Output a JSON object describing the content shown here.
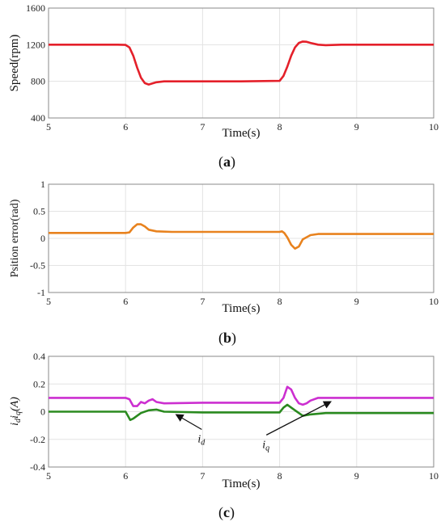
{
  "chart_data": [
    {
      "type": "line",
      "xlabel": "Time(s)",
      "ylabel": "Speed(rpm)",
      "panel_label": "a",
      "xlim": [
        5,
        10
      ],
      "ylim": [
        400,
        1600
      ],
      "xticks": [
        "5",
        "6",
        "7",
        "8",
        "9",
        "10"
      ],
      "yticks": [
        "400",
        "800",
        "1200",
        "1600"
      ],
      "grid": true,
      "colors": {
        "speed": "#e4202a"
      },
      "series": [
        {
          "x": [
            5,
            5.9,
            6.0,
            6.05,
            6.1,
            6.15,
            6.2,
            6.25,
            6.3,
            6.4,
            6.5,
            6.7,
            7.0,
            7.5,
            8.0,
            8.05,
            8.1,
            8.15,
            8.2,
            8.25,
            8.3,
            8.35,
            8.4,
            8.5,
            8.6,
            8.8,
            9.0,
            9.5,
            10
          ],
          "y": [
            1200,
            1200,
            1198,
            1170,
            1080,
            950,
            840,
            780,
            765,
            790,
            800,
            800,
            800,
            800,
            805,
            860,
            960,
            1080,
            1170,
            1220,
            1235,
            1232,
            1220,
            1200,
            1195,
            1200,
            1200,
            1200,
            1200
          ]
        }
      ]
    },
    {
      "type": "line",
      "xlabel": "Time(s)",
      "ylabel": "Psition error(rad)",
      "panel_label": "b",
      "xlim": [
        5,
        10
      ],
      "ylim": [
        -1,
        1
      ],
      "xticks": [
        "5",
        "6",
        "7",
        "8",
        "9",
        "10"
      ],
      "yticks": [
        "-1",
        "-0.5",
        "0",
        "0.5",
        "1"
      ],
      "grid": true,
      "colors": {
        "error": "#e8821e"
      },
      "series": [
        {
          "x": [
            5,
            5.5,
            6.0,
            6.05,
            6.1,
            6.15,
            6.2,
            6.25,
            6.3,
            6.4,
            6.6,
            7.0,
            7.5,
            8.0,
            8.03,
            8.06,
            8.1,
            8.15,
            8.2,
            8.25,
            8.3,
            8.4,
            8.5,
            9.0,
            10
          ],
          "y": [
            0.1,
            0.1,
            0.1,
            0.11,
            0.2,
            0.26,
            0.26,
            0.22,
            0.16,
            0.13,
            0.12,
            0.12,
            0.12,
            0.12,
            0.13,
            0.1,
            0.02,
            -0.12,
            -0.19,
            -0.15,
            -0.02,
            0.06,
            0.08,
            0.08,
            0.08
          ]
        }
      ]
    },
    {
      "type": "line",
      "xlabel": "Time(s)",
      "ylabel": "i_d i_q (A)",
      "panel_label": "c",
      "xlim": [
        5,
        10
      ],
      "ylim": [
        -0.4,
        0.4
      ],
      "xticks": [
        "5",
        "6",
        "7",
        "8",
        "9",
        "10"
      ],
      "yticks": [
        "-0.4",
        "-0.2",
        "0",
        "0.2",
        "0.4"
      ],
      "grid": true,
      "colors": {
        "iq": "#cc2fd0",
        "id": "#2a8a1f"
      },
      "annotations": [
        {
          "text": "i_d",
          "target_x": 6.6,
          "target_y": 0.0
        },
        {
          "text": "i_q",
          "target_x": 8.7,
          "target_y": 0.1
        }
      ],
      "series": [
        {
          "name": "i_q",
          "x": [
            5,
            6.0,
            6.05,
            6.1,
            6.15,
            6.2,
            6.25,
            6.3,
            6.35,
            6.4,
            6.5,
            7.0,
            8.0,
            8.05,
            8.1,
            8.15,
            8.2,
            8.25,
            8.3,
            8.35,
            8.4,
            8.5,
            8.6,
            9.0,
            10
          ],
          "y": [
            0.1,
            0.1,
            0.09,
            0.04,
            0.04,
            0.07,
            0.06,
            0.08,
            0.09,
            0.07,
            0.06,
            0.065,
            0.065,
            0.1,
            0.18,
            0.16,
            0.1,
            0.06,
            0.05,
            0.06,
            0.08,
            0.1,
            0.1,
            0.1,
            0.1
          ]
        },
        {
          "name": "i_d",
          "x": [
            5,
            6.0,
            6.03,
            6.06,
            6.1,
            6.15,
            6.2,
            6.3,
            6.4,
            6.5,
            7.0,
            8.0,
            8.05,
            8.1,
            8.15,
            8.2,
            8.25,
            8.3,
            8.4,
            8.6,
            9.0,
            10
          ],
          "y": [
            0.0,
            0.0,
            -0.03,
            -0.06,
            -0.05,
            -0.03,
            -0.01,
            0.01,
            0.015,
            0.0,
            -0.005,
            -0.005,
            0.03,
            0.05,
            0.03,
            0.01,
            -0.01,
            -0.03,
            -0.02,
            -0.01,
            -0.01,
            -0.01
          ]
        }
      ]
    }
  ]
}
